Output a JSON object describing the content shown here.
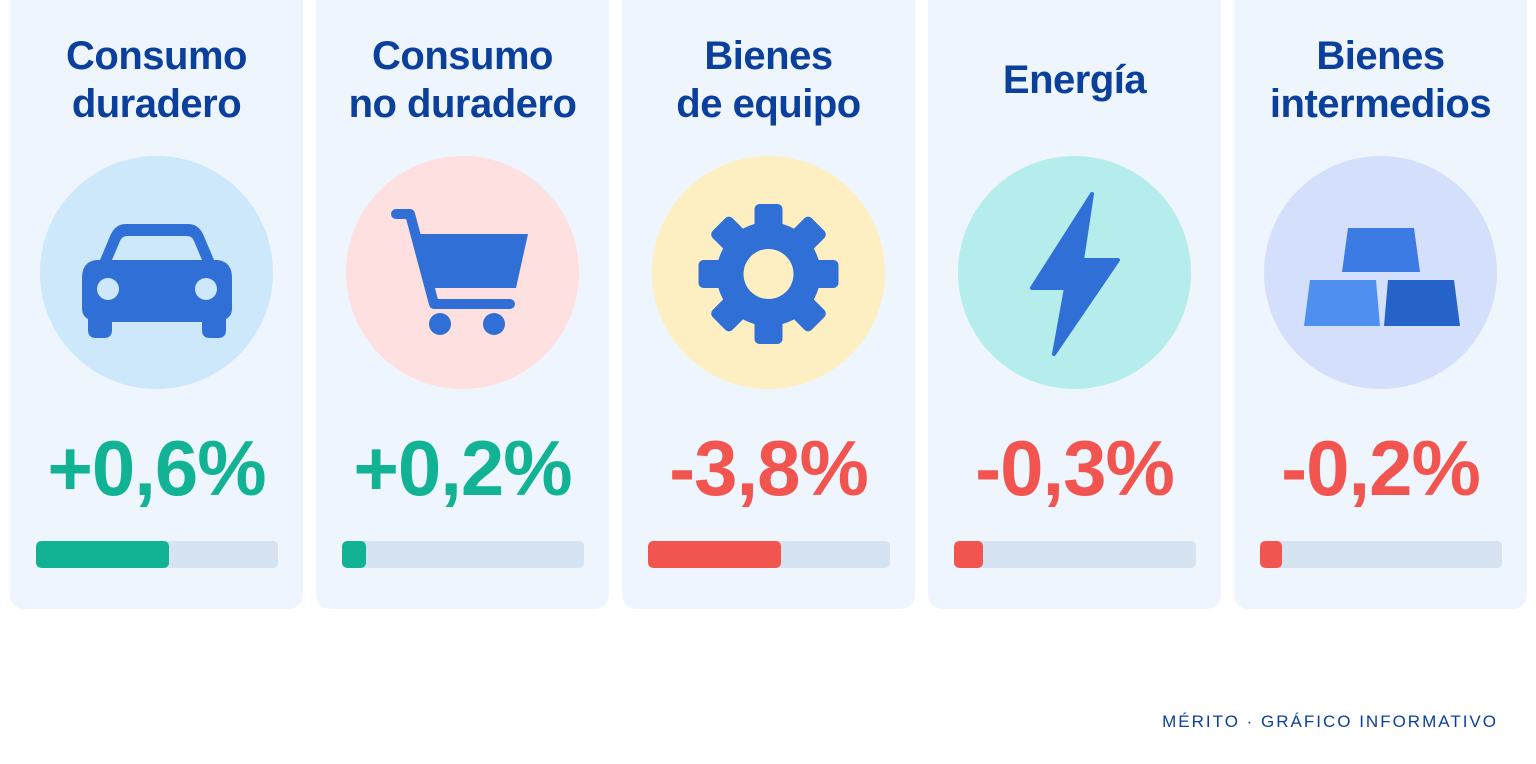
{
  "chart_data": {
    "type": "bar",
    "categories": [
      "Consumo\nduradero",
      "Consumo\nno duradero",
      "Bienes\nde equipo",
      "Energía",
      "Bienes\nintermedios"
    ],
    "values": [
      0.6,
      0.2,
      -3.8,
      -0.3,
      -0.2
    ],
    "value_labels": [
      "+0,6%",
      "+0,2%",
      "-3,8%",
      "-0,3%",
      "-0,2%"
    ],
    "bar_fraction": [
      0.55,
      0.1,
      0.55,
      0.12,
      0.09
    ],
    "icons": [
      "car-icon",
      "shopping-cart-icon",
      "gear-icon",
      "lightning-bolt-icon",
      "gold-bars-icon"
    ]
  },
  "colors": {
    "positive": "#12b394",
    "negative": "#f25550",
    "icon": "#2f6fd6",
    "circles": [
      "#cde7fb",
      "#fde0df",
      "#fdefc2",
      "#b5ecec",
      "#d4e0fb"
    ]
  },
  "footer": "MÉRITO · GRÁFICO INFORMATIVO"
}
